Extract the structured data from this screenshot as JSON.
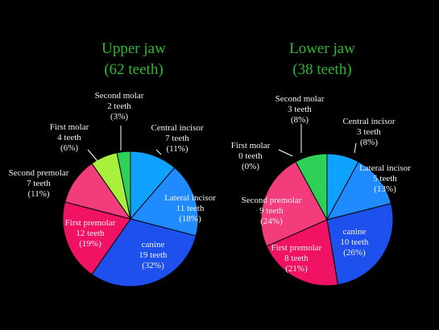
{
  "chart_data": [
    {
      "type": "pie",
      "title": "Upper jaw",
      "subtitle": "(62 teeth)",
      "slices": [
        {
          "name": "Central incisor",
          "count": "7 teeth",
          "pct_text": "(11%)",
          "value": 7,
          "color": "#0fa3ff"
        },
        {
          "name": "Lateral incisor",
          "count": "11 teeth",
          "pct_text": "(18%)",
          "value": 11,
          "color": "#1f8bff"
        },
        {
          "name": "canine",
          "count": "19 teeth",
          "pct_text": "(32%)",
          "value": 19,
          "color": "#1e50ee"
        },
        {
          "name": "First premolar",
          "count": "12 teeth",
          "pct_text": "(19%)",
          "value": 12,
          "color": "#f01364"
        },
        {
          "name": "Second premolar",
          "count": "7 teeth",
          "pct_text": "(11%)",
          "value": 7,
          "color": "#f23c7c"
        },
        {
          "name": "First molar",
          "count": "4 teeth",
          "pct_text": "(6%)",
          "value": 4,
          "color": "#a8f03c"
        },
        {
          "name": "Second molar",
          "count": "2 teeth",
          "pct_text": "(3%)",
          "value": 2,
          "color": "#2ed158"
        }
      ]
    },
    {
      "type": "pie",
      "title": "Lower jaw",
      "subtitle": "(38 teeth)",
      "slices": [
        {
          "name": "Central incisor",
          "count": "3 teeth",
          "pct_text": "(8%)",
          "value": 3,
          "color": "#0fa3ff"
        },
        {
          "name": "Lateral incisor",
          "count": "5 teeth",
          "pct_text": "(13%)",
          "value": 5,
          "color": "#1f8bff"
        },
        {
          "name": "canine",
          "count": "10 teeth",
          "pct_text": "(26%)",
          "value": 10,
          "color": "#1e50ee"
        },
        {
          "name": "First premolar",
          "count": "8 teeth",
          "pct_text": "(21%)",
          "value": 8,
          "color": "#f01364"
        },
        {
          "name": "Second premolar",
          "count": "9 teeth",
          "pct_text": "(24%)",
          "value": 9,
          "color": "#f23c7c"
        },
        {
          "name": "First molar",
          "count": "0 teeth",
          "pct_text": "(0%)",
          "value": 0,
          "color": "#a8f03c"
        },
        {
          "name": "Second molar",
          "count": "3 teeth",
          "pct_text": "(8%)",
          "value": 3,
          "color": "#2ed158"
        }
      ]
    }
  ]
}
